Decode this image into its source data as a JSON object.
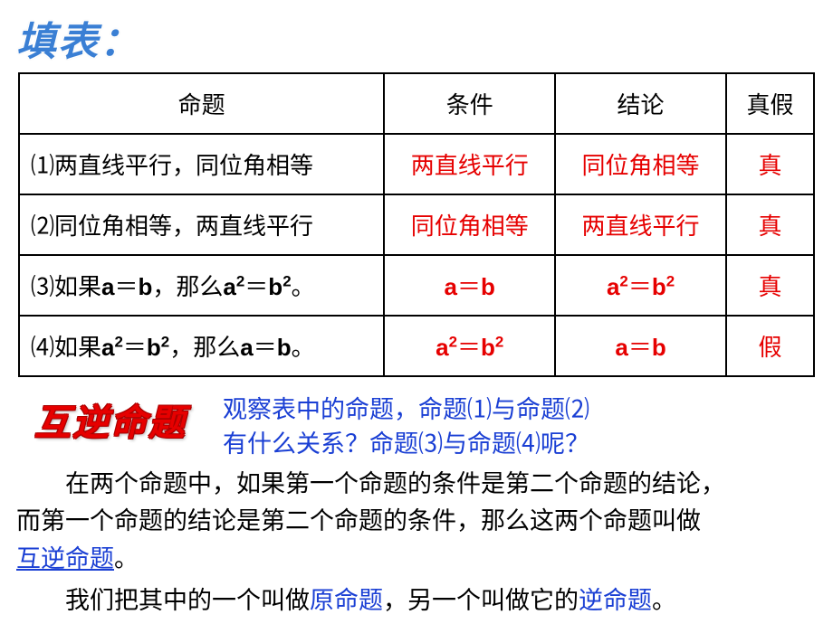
{
  "title": "填表：",
  "table": {
    "headers": [
      "命题",
      "条件",
      "结论",
      "真假"
    ],
    "rows": [
      {
        "prop": "⑴两直线平行，同位角相等",
        "cond": "两直线平行",
        "concl": "同位角相等",
        "tf": "真"
      },
      {
        "prop_html": "⑵同位角相等，两直线平行",
        "cond": "同位角相等",
        "concl": "两直线平行",
        "tf": "真"
      },
      {
        "prop_html": "⑶如果a＝b，那么a²＝b²。",
        "cond_html": "a＝b",
        "concl_html": "a²＝b²",
        "tf": "真"
      },
      {
        "prop_html": "⑷如果a²＝b²，那么a＝b。",
        "cond_html": "a²＝b²",
        "concl_html": "a＝b",
        "tf": "假"
      }
    ]
  },
  "section_heading": "互逆命题",
  "question_line1": "观察表中的命题，命题⑴与命题⑵",
  "question_line2": "有什么关系？命题⑶与命题⑷呢？",
  "para1_a": "在两个命题中，如果第一个命题的条件是第二个命题的结论，",
  "para1_b": "而第一个命题的结论是第二个命题的条件，那么这两个命题叫做",
  "para1_c": "互逆命题",
  "para1_d": "。",
  "para2_a": "我们把其中的一个叫做",
  "para2_b": "原命题",
  "para2_c": "，另一个叫做它的",
  "para2_d": "逆命题",
  "para2_e": "。",
  "colors": {
    "title_blue": "#3a7fd4",
    "red": "#e60000",
    "text_blue": "#1a3fd4",
    "black": "#000000",
    "bg": "#ffffff"
  },
  "fonts": {
    "title_size": 44,
    "heading_size": 40,
    "cell_size": 26,
    "body_size": 27
  }
}
